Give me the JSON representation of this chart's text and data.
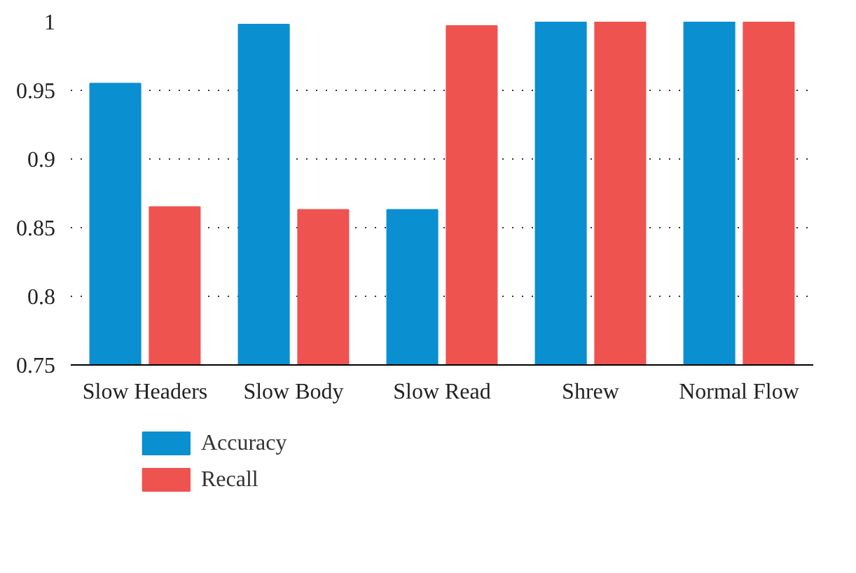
{
  "chart_data": {
    "type": "bar",
    "categories": [
      "Slow Headers",
      "Slow Body",
      "Slow Read",
      "Shrew",
      "Normal Flow"
    ],
    "series": [
      {
        "name": "Accuracy",
        "color": "#0a8fd0",
        "values": [
          0.955,
          0.998,
          0.863,
          1.0,
          1.0
        ]
      },
      {
        "name": "Recall",
        "color": "#ef5350",
        "values": [
          0.865,
          0.863,
          0.997,
          1.0,
          1.0
        ]
      }
    ],
    "ylim": [
      0.75,
      1.0
    ],
    "yticks": [
      0.75,
      0.8,
      0.85,
      0.9,
      0.95,
      1
    ],
    "grid": "y",
    "legend": "bottom left"
  }
}
